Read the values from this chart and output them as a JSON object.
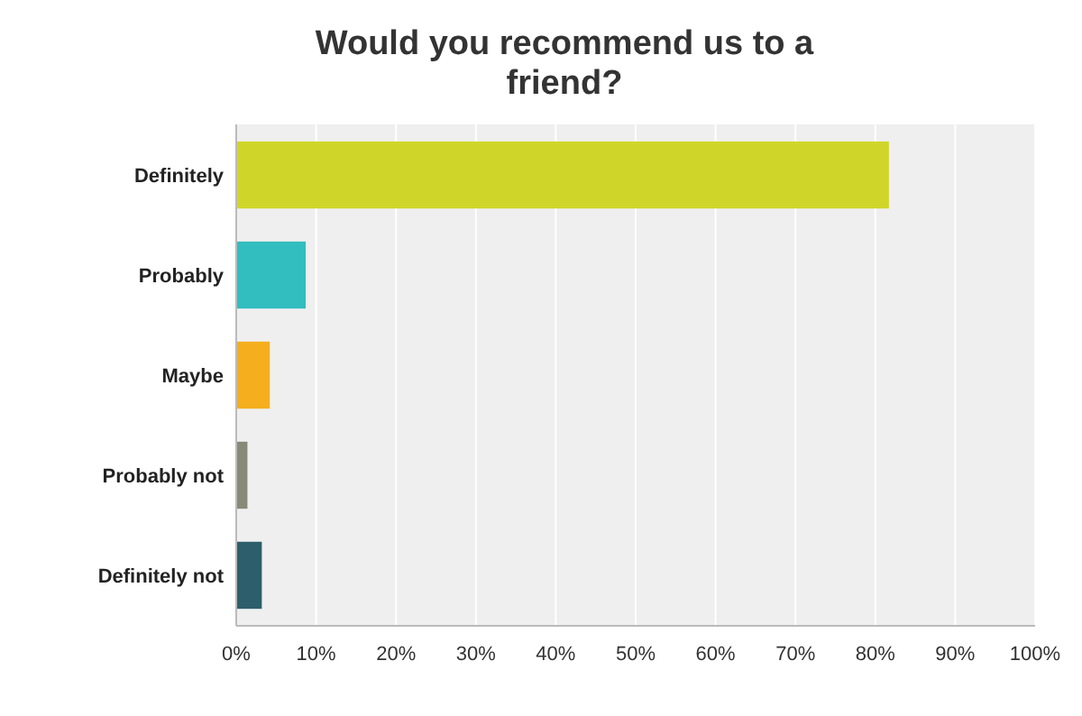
{
  "chart_data": {
    "type": "bar",
    "orientation": "horizontal",
    "title": "Would you recommend us to a friend?",
    "categories": [
      "Definitely",
      "Probably",
      "Maybe",
      "Probably not",
      "Definitely not"
    ],
    "values": [
      81.7,
      8.7,
      4.2,
      1.4,
      3.2
    ],
    "colors": [
      "#cfd629",
      "#32bdbf",
      "#f5ae1e",
      "#878a78",
      "#2c5f6b"
    ],
    "xlim": [
      0,
      100
    ],
    "xticks": [
      {
        "value": 0,
        "label": "0%"
      },
      {
        "value": 10,
        "label": "10%"
      },
      {
        "value": 20,
        "label": "20%"
      },
      {
        "value": 30,
        "label": "30%"
      },
      {
        "value": 40,
        "label": "40%"
      },
      {
        "value": 50,
        "label": "50%"
      },
      {
        "value": 60,
        "label": "60%"
      },
      {
        "value": 70,
        "label": "70%"
      },
      {
        "value": 80,
        "label": "80%"
      },
      {
        "value": 90,
        "label": "90%"
      },
      {
        "value": 100,
        "label": "100%"
      }
    ],
    "grid": "x"
  }
}
